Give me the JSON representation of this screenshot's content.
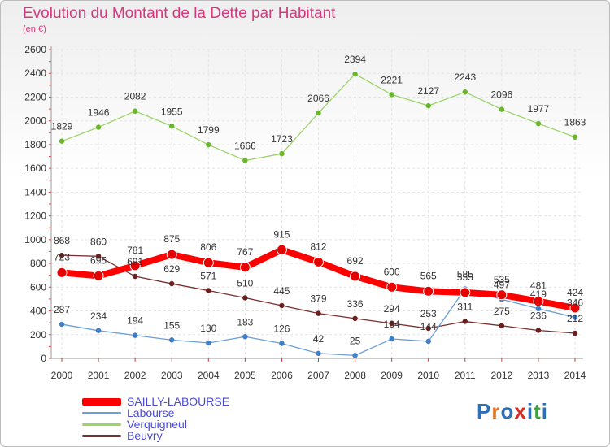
{
  "title": "Evolution du Montant de la Dette par Habitant",
  "subtitle": "(en €)",
  "logo": {
    "text": "Proxiti",
    "letters": [
      "P",
      "r",
      "o",
      "x",
      "i",
      "t",
      "i"
    ],
    "colors": [
      "#2f6fb5",
      "#e8731e",
      "#2f6fb5",
      "#d82a2a",
      "#2f6fb5",
      "#3aa43a",
      "#2f6fb5"
    ]
  },
  "chart_data": {
    "type": "line",
    "title": "Evolution du Montant de la Dette par Habitant",
    "ylabel": "(en €)",
    "xlabel": "",
    "ylim": [
      0,
      2600
    ],
    "yticks": [
      0,
      200,
      400,
      600,
      800,
      1000,
      1200,
      1400,
      1600,
      1800,
      2000,
      2200,
      2400,
      2600
    ],
    "grid": true,
    "categories": [
      "2000",
      "2001",
      "2002",
      "2003",
      "2004",
      "2005",
      "2006",
      "2007",
      "2008",
      "2009",
      "2010",
      "2011",
      "2012",
      "2013",
      "2014"
    ],
    "series": [
      {
        "name": "SAILLY-LABOURSE",
        "color": "#ff0000",
        "marker": "#e60000",
        "values": [
          723,
          695,
          781,
          875,
          806,
          767,
          915,
          812,
          692,
          600,
          565,
          555,
          535,
          481,
          424
        ]
      },
      {
        "name": "Labourse",
        "color": "#6a9fd8",
        "marker": "#3f7fc8",
        "values": [
          287,
          234,
          194,
          155,
          130,
          183,
          126,
          42,
          25,
          164,
          144,
          585,
          497,
          419,
          346
        ]
      },
      {
        "name": "Verquigneul",
        "color": "#9cd46a",
        "marker": "#6ab82a",
        "values": [
          1829,
          1946,
          2082,
          1955,
          1799,
          1666,
          1723,
          2066,
          2394,
          2221,
          2127,
          2243,
          2096,
          1977,
          1863
        ]
      },
      {
        "name": "Beuvry",
        "color": "#7a2f2f",
        "marker": "#6b1e1e",
        "values": [
          868,
          860,
          691,
          629,
          571,
          510,
          445,
          379,
          336,
          294,
          253,
          311,
          275,
          236,
          212
        ]
      }
    ]
  }
}
